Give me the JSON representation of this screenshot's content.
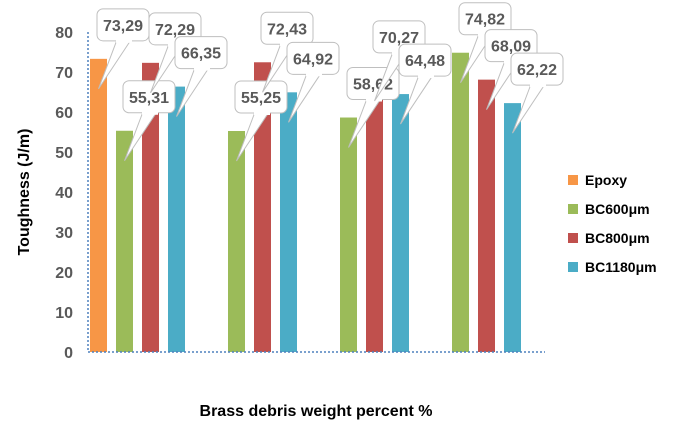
{
  "chart_data": {
    "type": "bar",
    "categories": [
      "",
      "",
      "",
      ""
    ],
    "series": [
      {
        "name": "Epoxy",
        "color": "#F79646",
        "values": [
          73.29,
          null,
          null,
          null
        ]
      },
      {
        "name": "BC600μm",
        "color": "#9BBB59",
        "values": [
          55.31,
          55.25,
          58.62,
          74.82
        ]
      },
      {
        "name": "BC800μm",
        "color": "#C0504D",
        "values": [
          72.29,
          72.43,
          70.27,
          68.09
        ]
      },
      {
        "name": "BC1180μm",
        "color": "#4BACC6",
        "values": [
          66.35,
          64.92,
          64.48,
          62.22
        ]
      }
    ],
    "data_labels": [
      [
        "73,29",
        null,
        null,
        null
      ],
      [
        "55,31",
        "55,25",
        "58,62",
        "74,82"
      ],
      [
        "72,29",
        "72,43",
        "70,27",
        "68,09"
      ],
      [
        "66,35",
        "64,92",
        "64,48",
        "62,22"
      ]
    ],
    "ylabel": "Toughness (J/m)",
    "xlabel": "Brass debris weight percent %",
    "ylim": [
      0,
      80
    ],
    "yticks": [
      "0",
      "10",
      "20",
      "30",
      "40",
      "50",
      "60",
      "70",
      "80"
    ],
    "grid": false,
    "legend_position": "right"
  }
}
